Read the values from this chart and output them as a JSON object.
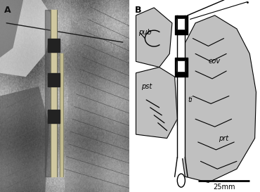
{
  "fig_width": 3.7,
  "fig_height": 2.73,
  "dpi": 100,
  "bg_color": "#ffffff",
  "panel_A_label": "A",
  "panel_B_label": "B",
  "label_fontsize": 9,
  "annotation_fontsize": 7,
  "scale_bar_label": "25mm",
  "gray_fill": "#c0c0c0",
  "black": "#000000",
  "white": "#ffffff",
  "photo_bg": "#909090"
}
